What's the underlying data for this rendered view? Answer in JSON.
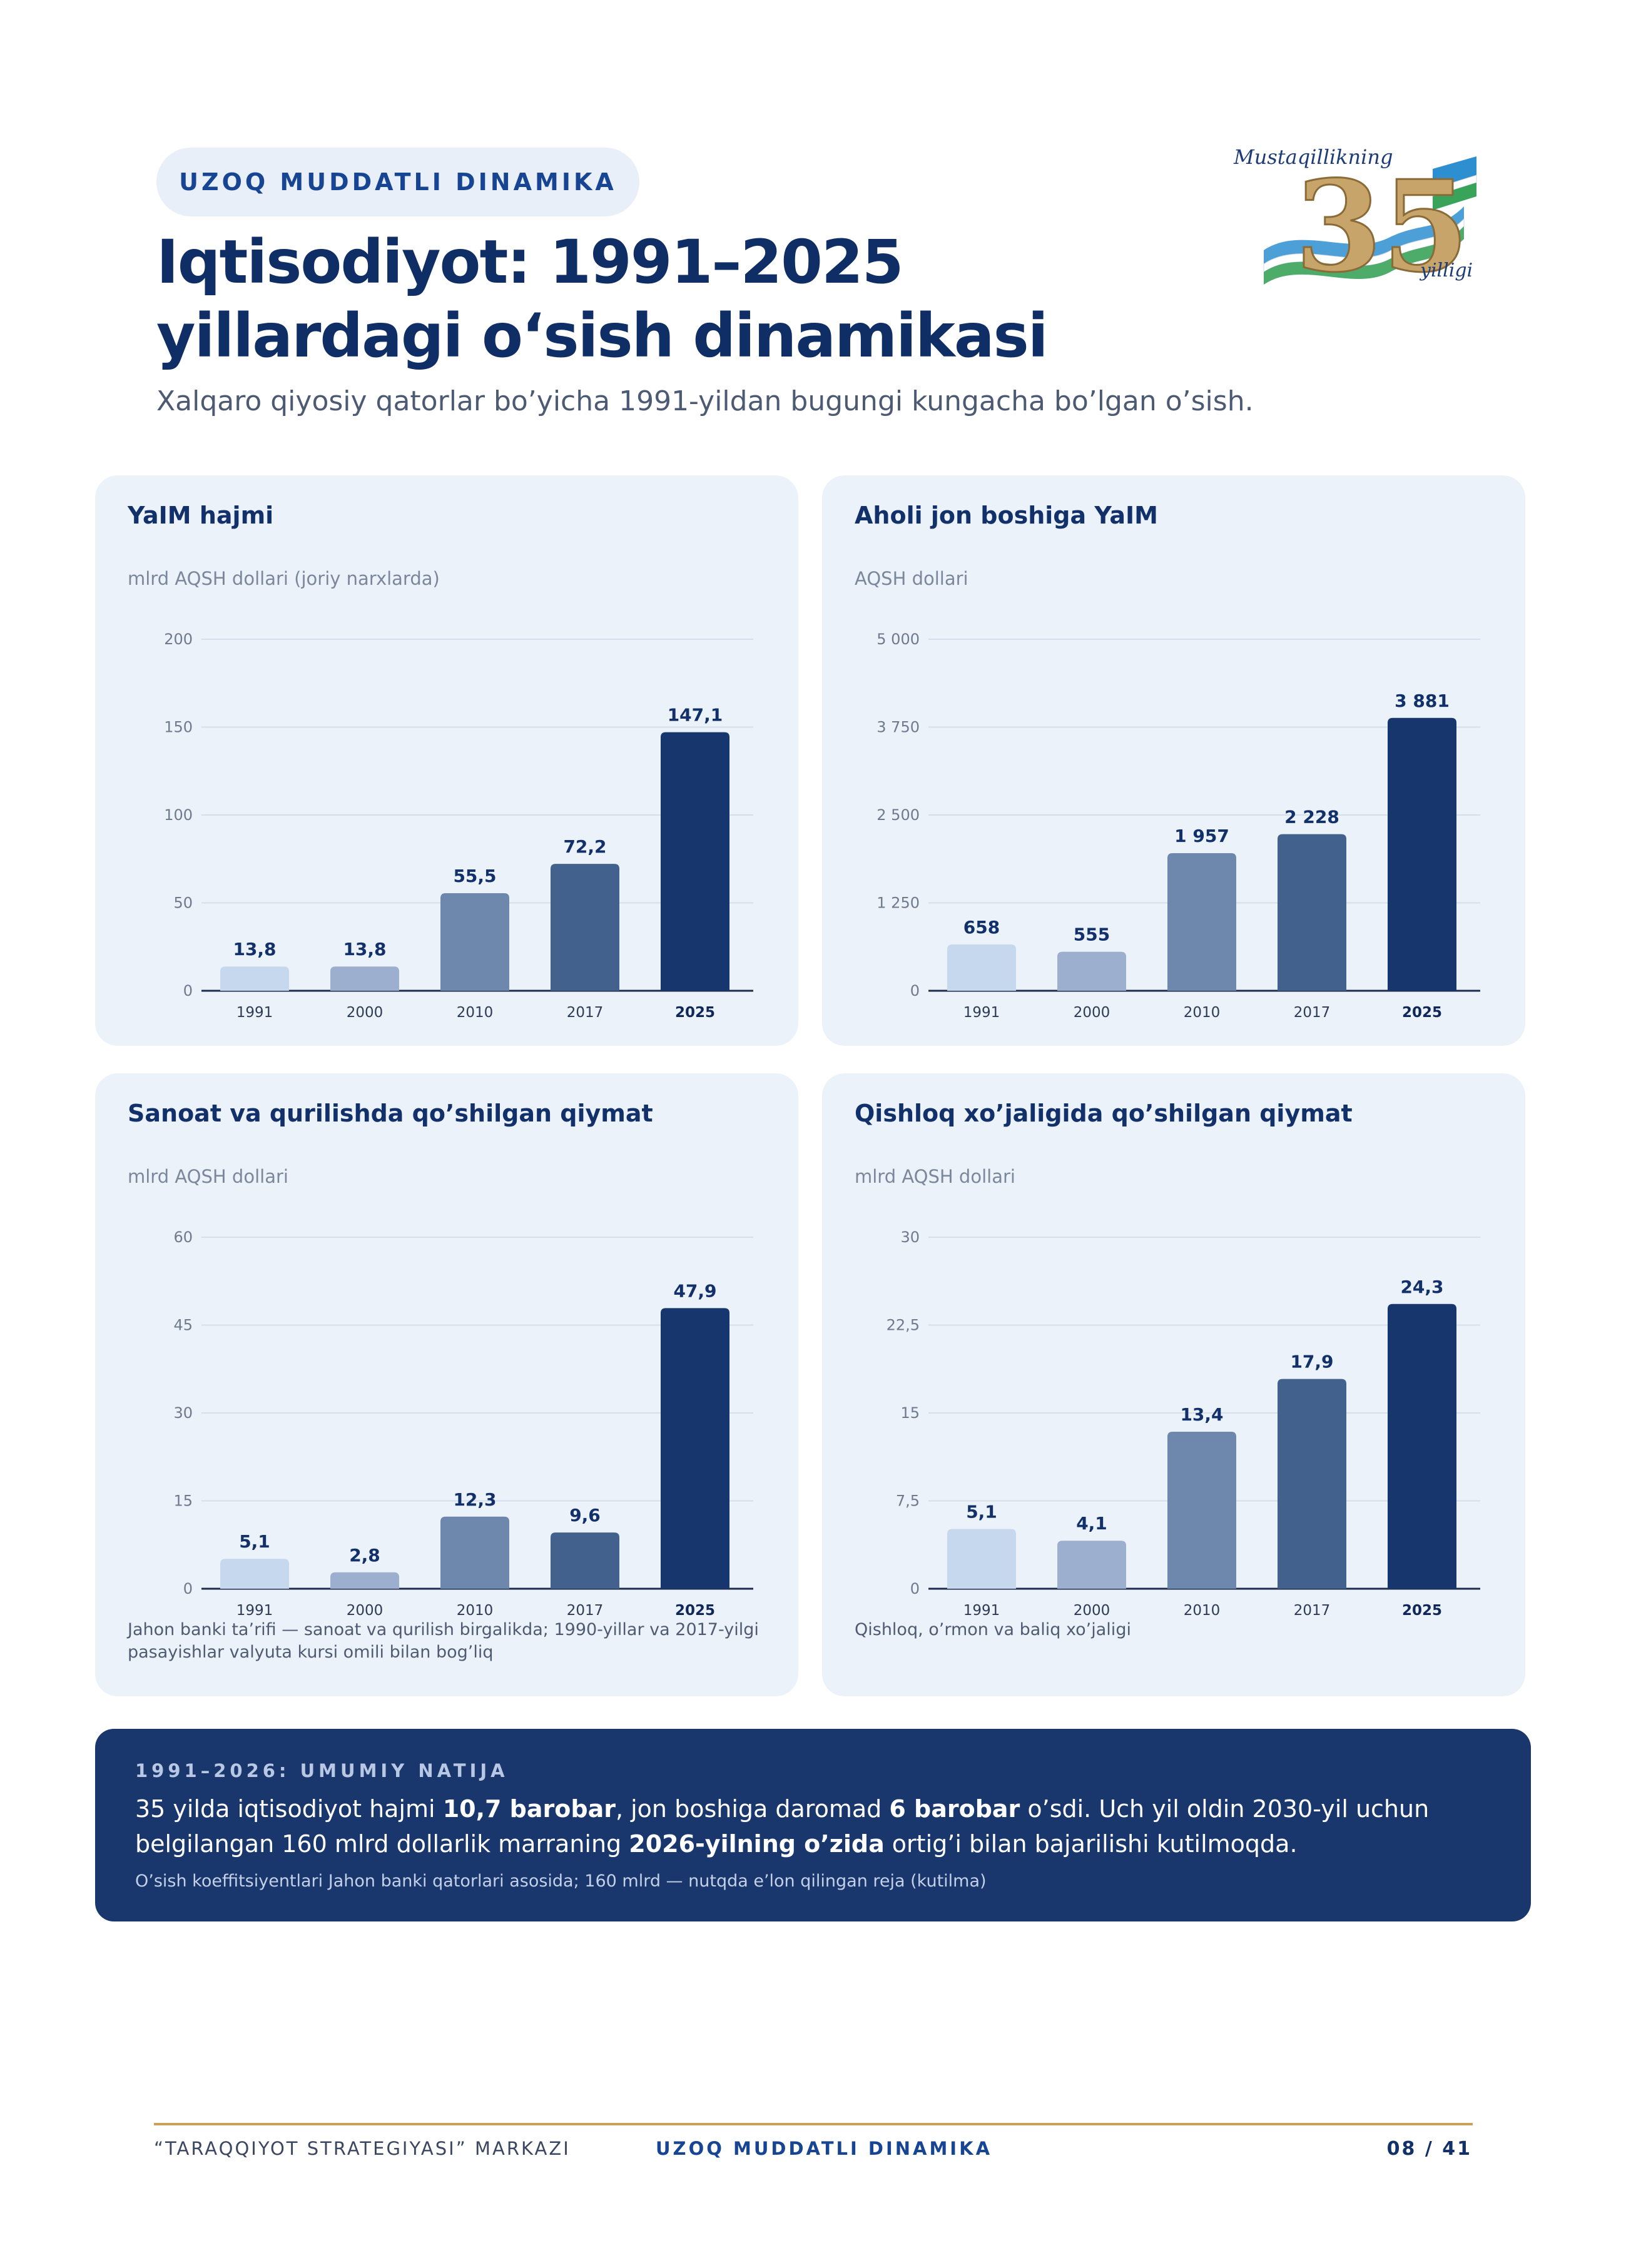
{
  "header": {
    "kicker": "UZOQ MUDDATLI DINAMIKA",
    "title_line1": "Iqtisodiyot: 1991–2025",
    "title_line2": "yillardagi o‘sish dinamikasi",
    "subtitle": "Xalqaro qiyosiy qatorlar bo’yicha 1991-yildan bugungi kungacha bo’lgan o’sish."
  },
  "logo": {
    "top_text": "Mustaqillikning",
    "number": "35",
    "bottom_text": "yilligi"
  },
  "chart_data": [
    {
      "type": "bar",
      "title": "YaIM hajmi",
      "unit": "mlrd AQSH dollari (joriy narxlarda)",
      "categories": [
        "1991",
        "2000",
        "2010",
        "2017",
        "2025"
      ],
      "values": [
        13.8,
        13.8,
        55.5,
        72.2,
        147.1
      ],
      "value_labels": [
        "13,8",
        "13,8",
        "55,5",
        "72,2",
        "147,1"
      ],
      "yticks": [
        0,
        50,
        100,
        150,
        200
      ],
      "ytick_labels": [
        "0",
        "50",
        "100",
        "150",
        "200"
      ],
      "ylim": [
        0,
        200
      ],
      "grid": true,
      "note": ""
    },
    {
      "type": "bar",
      "title": "Aholi jon boshiga YaIM",
      "unit": "AQSH dollari",
      "categories": [
        "1991",
        "2000",
        "2010",
        "2017",
        "2025"
      ],
      "values": [
        658,
        555,
        1957,
        2228,
        3881
      ],
      "value_labels": [
        "658",
        "555",
        "1 957",
        "2 228",
        "3 881"
      ],
      "yticks": [
        0,
        1250,
        2500,
        3750,
        5000
      ],
      "ytick_labels": [
        "0",
        "1 250",
        "2 500",
        "3 750",
        "5 000"
      ],
      "ylim": [
        0,
        5000
      ],
      "grid": true,
      "note": ""
    },
    {
      "type": "bar",
      "title": "Sanoat va qurilishda qo’shilgan qiymat",
      "unit": "mlrd AQSH dollari",
      "categories": [
        "1991",
        "2000",
        "2010",
        "2017",
        "2025"
      ],
      "values": [
        5.1,
        2.8,
        12.3,
        9.6,
        47.9
      ],
      "value_labels": [
        "5,1",
        "2,8",
        "12,3",
        "9,6",
        "47,9"
      ],
      "yticks": [
        0,
        15,
        30,
        45,
        60
      ],
      "ytick_labels": [
        "0",
        "15",
        "30",
        "45",
        "60"
      ],
      "ylim": [
        0,
        60
      ],
      "grid": true,
      "note": "Jahon banki ta’rifi — sanoat va qurilish birgalikda; 1990-yillar va 2017-yilgi pasayishlar valyuta kursi omili bilan bog’liq"
    },
    {
      "type": "bar",
      "title": "Qishloq xo’jaligida qo’shilgan qiymat",
      "unit": "mlrd AQSH dollari",
      "categories": [
        "1991",
        "2000",
        "2010",
        "2017",
        "2025"
      ],
      "values": [
        5.1,
        4.1,
        13.4,
        17.9,
        24.3
      ],
      "value_labels": [
        "5,1",
        "4,1",
        "13,4",
        "17,9",
        "24,3"
      ],
      "yticks": [
        0,
        7.5,
        15,
        22.5,
        30
      ],
      "ytick_labels": [
        "0",
        "7,5",
        "15",
        "22,5",
        "30"
      ],
      "ylim": [
        0,
        30
      ],
      "grid": true,
      "note": "Qishloq, o’rmon va baliq xo’jaligi"
    }
  ],
  "bar_colors": [
    "#c5d8ee",
    "#9cafcf",
    "#6e87ad",
    "#43618d",
    "#17366d"
  ],
  "result": {
    "kicker": "1991–2026: UMUMIY NATIJA",
    "p1": "35 yilda iqtisodiyot hajmi ",
    "b1": "10,7 barobar",
    "p2": ", jon boshiga daromad ",
    "b2": "6 barobar",
    "p3": " o’sdi. Uch yil oldin 2030-yil uchun belgilangan 160 mlrd dollarlik marraning ",
    "b3": "2026-yilning o’zida",
    "p4": " ortig’i bilan bajarilishi kutilmoqda.",
    "note": "O’sish koeffitsiyentlari Jahon banki qatorlari asosida; 160 mlrd — nutqda e’lon qilingan reja (kutilma)"
  },
  "footer": {
    "left": "“TARAQQIYOT STRATEGIYASI” MARKAZI",
    "center": "UZOQ MUDDATLI DINAMIKA",
    "page": "08 / 41"
  }
}
